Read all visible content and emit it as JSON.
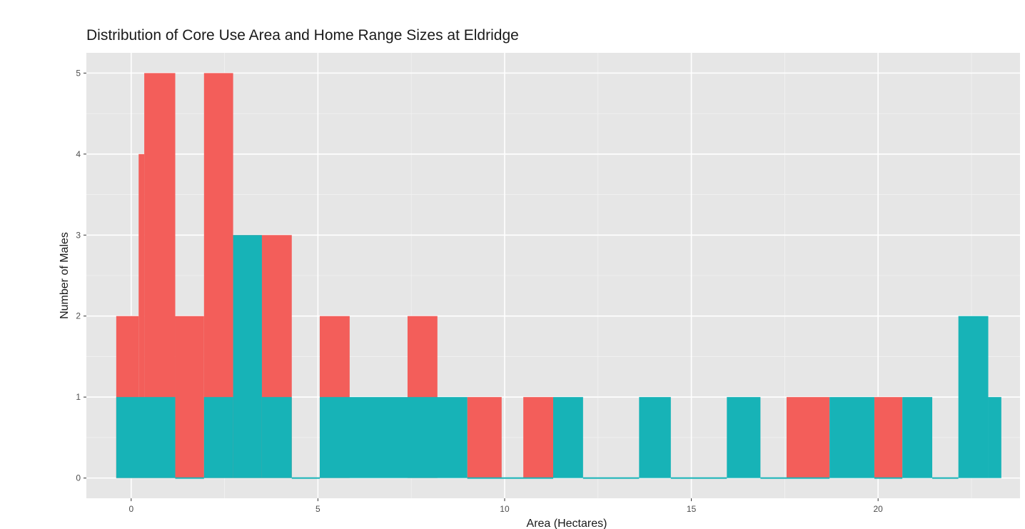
{
  "chart_data": {
    "type": "histogram",
    "title": "Distribution of Core Use Area and Home Range Sizes at Eldridge",
    "xlabel": "Area (Hectares)",
    "ylabel": "Number of Males",
    "xlim": [
      -1.2,
      23.8
    ],
    "ylim": [
      -0.25,
      5.25
    ],
    "x_ticks": [
      0,
      5,
      10,
      15,
      20
    ],
    "y_ticks": [
      0,
      1,
      2,
      3,
      4,
      5
    ],
    "grid": true,
    "legend": "none",
    "colors": {
      "series_a": "#F35E5A",
      "series_b": "#17B3B7",
      "panel": "#E6E6E6",
      "grid": "#FFFFFF"
    },
    "series": [
      {
        "color": "#F35E5A",
        "bins": [
          {
            "x0": -0.4,
            "x1": 0.2,
            "count": 2
          },
          {
            "x0": 0.2,
            "x1": 0.35,
            "count": 4
          },
          {
            "x0": 0.35,
            "x1": 1.18,
            "count": 5
          },
          {
            "x0": 1.18,
            "x1": 1.95,
            "count": 2
          },
          {
            "x0": 1.95,
            "x1": 2.73,
            "count": 5
          },
          {
            "x0": 2.73,
            "x1": 3.5,
            "count": 3
          },
          {
            "x0": 3.5,
            "x1": 4.3,
            "count": 3
          },
          {
            "x0": 5.05,
            "x1": 5.85,
            "count": 2
          },
          {
            "x0": 7.4,
            "x1": 8.2,
            "count": 2
          },
          {
            "x0": 9.0,
            "x1": 9.92,
            "count": 1
          },
          {
            "x0": 10.5,
            "x1": 11.3,
            "count": 1
          },
          {
            "x0": 17.55,
            "x1": 18.7,
            "count": 1
          },
          {
            "x0": 19.9,
            "x1": 20.65,
            "count": 1
          }
        ]
      },
      {
        "color": "#17B3B7",
        "bins": [
          {
            "x0": -0.4,
            "x1": 1.18,
            "count": 1
          },
          {
            "x0": 1.18,
            "x1": 1.95,
            "count": 0
          },
          {
            "x0": 1.95,
            "x1": 2.73,
            "count": 1
          },
          {
            "x0": 2.73,
            "x1": 3.5,
            "count": 3
          },
          {
            "x0": 3.5,
            "x1": 4.3,
            "count": 1
          },
          {
            "x0": 4.3,
            "x1": 5.05,
            "count": 0
          },
          {
            "x0": 5.05,
            "x1": 9.0,
            "count": 1
          },
          {
            "x0": 9.0,
            "x1": 11.3,
            "count": 0
          },
          {
            "x0": 11.3,
            "x1": 12.1,
            "count": 1
          },
          {
            "x0": 12.1,
            "x1": 13.6,
            "count": 0
          },
          {
            "x0": 13.6,
            "x1": 14.45,
            "count": 1
          },
          {
            "x0": 14.45,
            "x1": 15.95,
            "count": 0
          },
          {
            "x0": 15.95,
            "x1": 16.85,
            "count": 1
          },
          {
            "x0": 16.85,
            "x1": 18.7,
            "count": 0
          },
          {
            "x0": 18.7,
            "x1": 19.9,
            "count": 1
          },
          {
            "x0": 19.9,
            "x1": 20.65,
            "count": 0
          },
          {
            "x0": 20.65,
            "x1": 21.45,
            "count": 1
          },
          {
            "x0": 21.45,
            "x1": 22.15,
            "count": 0
          },
          {
            "x0": 22.15,
            "x1": 22.95,
            "count": 2
          },
          {
            "x0": 22.95,
            "x1": 23.3,
            "count": 1
          }
        ]
      }
    ]
  }
}
